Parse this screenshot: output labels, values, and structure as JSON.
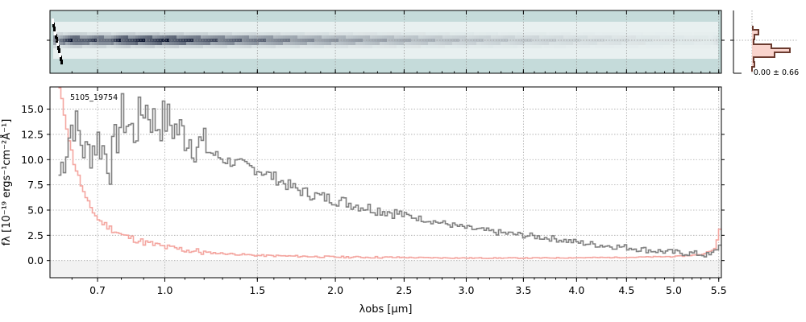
{
  "chart_data": [
    {
      "type": "heatmap",
      "panel": "2D spectrum",
      "description_colors": {
        "background": "#c5dbda",
        "low": "#ffffff",
        "high": "#0b1530"
      },
      "grid": true,
      "xlim": [
        0.52,
        5.53
      ]
    },
    {
      "type": "line",
      "panel": "1D spectrum",
      "annotation": "5105_19754",
      "xlabel": "λobs [μm]",
      "ylabel": "fλ [10⁻¹⁹ ergs⁻¹cm⁻²Å⁻¹]",
      "xlim": [
        0.52,
        5.53
      ],
      "ylim": [
        -1.7,
        17.2
      ],
      "x_scale": "power 0.5",
      "grid": true,
      "x_ticks": [
        0.7,
        1.0,
        1.5,
        2.0,
        2.5,
        3.0,
        3.5,
        4.0,
        4.5,
        5.0,
        5.5
      ],
      "x_tick_labels": [
        "0.7",
        "1.0",
        "1.5",
        "2.0",
        "2.5",
        "3.0",
        "3.5",
        "4.0",
        "4.5",
        "5.0",
        "5.5"
      ],
      "y_ticks": [
        0.0,
        2.5,
        5.0,
        7.5,
        10.0,
        12.5,
        15.0
      ],
      "y_tick_labels": [
        "0.0",
        "2.5",
        "5.0",
        "7.5",
        "10.0",
        "12.5",
        "15.0"
      ],
      "series": [
        {
          "role": "flux",
          "color": "#808080",
          "style": "steps",
          "x": [
            0.55,
            0.6,
            0.65,
            0.7,
            0.75,
            0.8,
            0.85,
            0.9,
            0.95,
            1.0,
            1.05,
            1.1,
            1.2,
            1.3,
            1.4,
            1.5,
            1.6,
            1.7,
            1.8,
            1.9,
            2.0,
            2.2,
            2.4,
            2.6,
            2.8,
            3.0,
            3.25,
            3.5,
            3.75,
            4.0,
            4.25,
            4.5,
            4.75,
            5.0,
            5.2,
            5.4,
            5.5
          ],
          "y": [
            8.5,
            14.0,
            10.5,
            12.0,
            9.5,
            14.5,
            12.5,
            15.5,
            13.5,
            14.0,
            13.0,
            12.5,
            11.0,
            10.0,
            9.5,
            9.0,
            8.2,
            7.3,
            6.7,
            6.3,
            6.0,
            5.3,
            4.8,
            4.2,
            3.7,
            3.2,
            2.8,
            2.5,
            2.2,
            1.8,
            1.5,
            1.3,
            1.0,
            0.8,
            0.7,
            0.5,
            1.5
          ]
        },
        {
          "role": "uncertainty",
          "color": "#f4a6a0",
          "style": "steps",
          "x": [
            0.55,
            0.6,
            0.65,
            0.7,
            0.75,
            0.8,
            0.9,
            1.0,
            1.2,
            1.5,
            2.0,
            2.5,
            3.0,
            3.5,
            4.0,
            4.5,
            5.0,
            5.3,
            5.45,
            5.52
          ],
          "y": [
            17.0,
            10.0,
            6.0,
            4.0,
            3.2,
            2.5,
            1.8,
            1.3,
            0.8,
            0.5,
            0.35,
            0.3,
            0.25,
            0.25,
            0.28,
            0.32,
            0.4,
            0.6,
            1.2,
            4.0
          ]
        }
      ]
    },
    {
      "type": "bar",
      "panel": "cross-dispersion profile",
      "annotation": "0.00 ± 0.66",
      "colors": {
        "profile": "#6b3b2f",
        "fill": "#f7c9c0"
      }
    }
  ]
}
